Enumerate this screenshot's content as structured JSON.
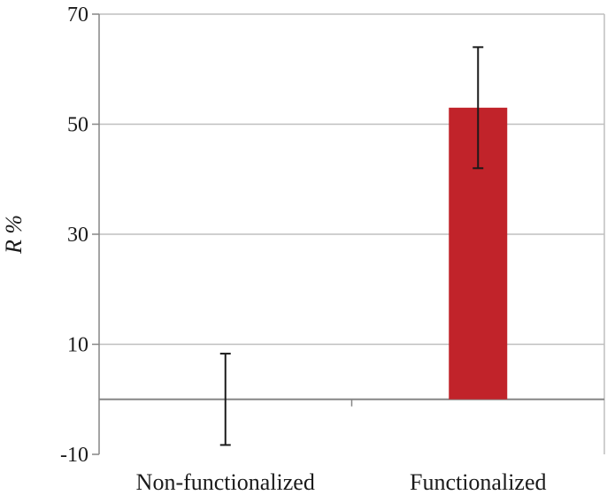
{
  "chart_data": {
    "type": "bar",
    "categories": [
      "Non-functionalized",
      "Functionalized"
    ],
    "values": [
      0,
      53
    ],
    "error_low": [
      -8.3,
      42
    ],
    "error_high": [
      8.3,
      64
    ],
    "ylabel": "R %",
    "ylim": [
      -10,
      70
    ],
    "yticks": [
      -10,
      10,
      30,
      50,
      70
    ],
    "grid": true,
    "bar_color": "#c1232a",
    "grid_color": "#bfbfbf",
    "axis_color": "#868686"
  }
}
